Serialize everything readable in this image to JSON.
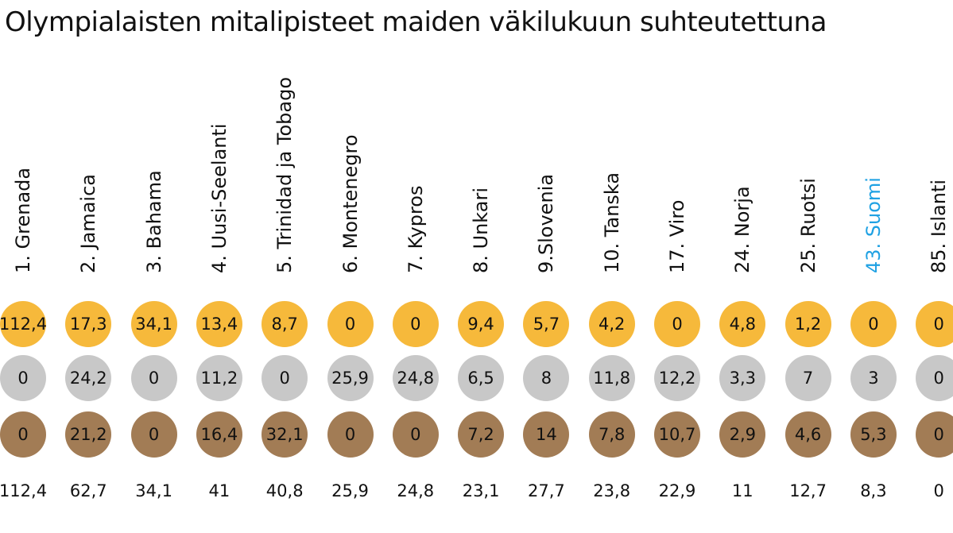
{
  "title": "Olympialaisten mitalipisteet maiden väkilukuun suhteutettuna",
  "colors": {
    "gold": "#f6b93b",
    "silver": "#c8c8c8",
    "bronze": "#a27c55",
    "text": "#111111",
    "highlight": "#1fa1e3"
  },
  "chart_data": {
    "type": "table",
    "title": "Olympialaisten mitalipisteet maiden väkilukuun suhteutettuna",
    "columns": [
      {
        "country": "1. Grenada",
        "gold": "112,4",
        "silver": "0",
        "bronze": "0",
        "total": "112,4",
        "highlight": false
      },
      {
        "country": "2. Jamaica",
        "gold": "17,3",
        "silver": "24,2",
        "bronze": "21,2",
        "total": "62,7",
        "highlight": false
      },
      {
        "country": "3. Bahama",
        "gold": "34,1",
        "silver": "0",
        "bronze": "0",
        "total": "34,1",
        "highlight": false
      },
      {
        "country": "4. Uusi-Seelanti",
        "gold": "13,4",
        "silver": "11,2",
        "bronze": "16,4",
        "total": "41",
        "highlight": false
      },
      {
        "country": "5. Trinidad ja Tobago",
        "gold": "8,7",
        "silver": "0",
        "bronze": "32,1",
        "total": "40,8",
        "highlight": false
      },
      {
        "country": "6. Montenegro",
        "gold": "0",
        "silver": "25,9",
        "bronze": "0",
        "total": "25,9",
        "highlight": false
      },
      {
        "country": "7. Kypros",
        "gold": "0",
        "silver": "24,8",
        "bronze": "0",
        "total": "24,8",
        "highlight": false
      },
      {
        "country": "8. Unkari",
        "gold": "9,4",
        "silver": "6,5",
        "bronze": "7,2",
        "total": "23,1",
        "highlight": false
      },
      {
        "country": "9.Slovenia",
        "gold": "5,7",
        "silver": "8",
        "bronze": "14",
        "total": "27,7",
        "highlight": false
      },
      {
        "country": "10. Tanska",
        "gold": "4,2",
        "silver": "11,8",
        "bronze": "7,8",
        "total": "23,8",
        "highlight": false
      },
      {
        "country": "17. Viro",
        "gold": "0",
        "silver": "12,2",
        "bronze": "10,7",
        "total": "22,9",
        "highlight": false
      },
      {
        "country": "24. Norja",
        "gold": "4,8",
        "silver": "3,3",
        "bronze": "2,9",
        "total": "11",
        "highlight": false
      },
      {
        "country": "25. Ruotsi",
        "gold": "1,2",
        "silver": "7",
        "bronze": "4,6",
        "total": "12,7",
        "highlight": false
      },
      {
        "country": "43. Suomi",
        "gold": "0",
        "silver": "3",
        "bronze": "5,3",
        "total": "8,3",
        "highlight": true
      },
      {
        "country": "85. Islanti",
        "gold": "0",
        "silver": "0",
        "bronze": "0",
        "total": "0",
        "highlight": false
      }
    ]
  }
}
